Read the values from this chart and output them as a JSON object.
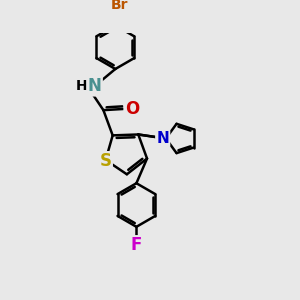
{
  "bg_color": "#e8e8e8",
  "bond_color": "#000000",
  "atom_colors": {
    "S": "#b8a000",
    "N_amide": "#4a9090",
    "N_pyrrole": "#0000cc",
    "O": "#cc0000",
    "F": "#cc00cc",
    "Br": "#bb5500",
    "H": "#000000"
  },
  "figsize": [
    3.0,
    3.0
  ],
  "dpi": 100
}
